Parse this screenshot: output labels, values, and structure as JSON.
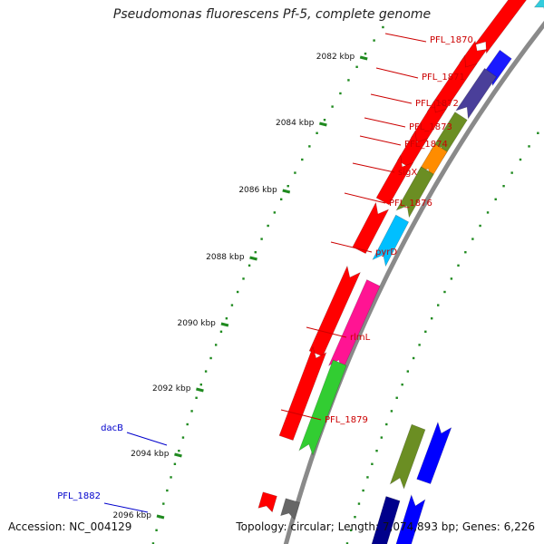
{
  "title": "Pseudomonas fluorescens Pf-5, complete genome",
  "footer": {
    "accession": "Accession: NC_004129",
    "summary": "Topology: circular; Length: 7,074,893 bp; Genes: 6,226"
  },
  "colors": {
    "backbone": "#8a8a8a",
    "tick": "#1f8a1f",
    "label_forward": "#cc0000",
    "label_reverse": "#0000cc"
  },
  "ticks": [
    {
      "label": "2082 kbp",
      "kbp": 2082
    },
    {
      "label": "2084 kbp",
      "kbp": 2084
    },
    {
      "label": "2086 kbp",
      "kbp": 2086
    },
    {
      "label": "2088 kbp",
      "kbp": 2088
    },
    {
      "label": "2090 kbp",
      "kbp": 2090
    },
    {
      "label": "2092 kbp",
      "kbp": 2092
    },
    {
      "label": "2094 kbp",
      "kbp": 2094
    },
    {
      "label": "2096 kbp",
      "kbp": 2096
    }
  ],
  "gene_labels": [
    {
      "text": "PFL_1870",
      "strand": "forward"
    },
    {
      "text": "PFL_1871",
      "strand": "forward"
    },
    {
      "text": "PFL_1872",
      "strand": "forward"
    },
    {
      "text": "PFL_1873",
      "strand": "forward"
    },
    {
      "text": "PFL_1874",
      "strand": "forward"
    },
    {
      "text": "sigX",
      "strand": "forward"
    },
    {
      "text": "PFL_1876",
      "strand": "forward"
    },
    {
      "text": "pyrD",
      "strand": "forward"
    },
    {
      "text": "rlmL",
      "strand": "forward"
    },
    {
      "text": "PFL_1879",
      "strand": "forward"
    },
    {
      "text": "dacB",
      "strand": "reverse"
    },
    {
      "text": "PFL_1882",
      "strand": "reverse"
    }
  ],
  "features": [
    {
      "track": "gene",
      "strand": "forward",
      "color": "#ff0000"
    },
    {
      "track": "cds",
      "strand": "forward",
      "color": "#33ccdd"
    },
    {
      "track": "gene",
      "strand": "forward",
      "color": "#ff0000"
    },
    {
      "track": "cds",
      "strand": "forward",
      "color": "#1a1aff"
    },
    {
      "track": "gene",
      "strand": "forward",
      "color": "#ff0000"
    },
    {
      "track": "cds",
      "strand": "forward",
      "color": "#4a3f9a"
    },
    {
      "track": "gene",
      "strand": "forward",
      "color": "#ff0000"
    },
    {
      "track": "gene",
      "strand": "forward",
      "color": "#ff0000"
    },
    {
      "track": "cds",
      "strand": "forward",
      "color": "#6b8e23"
    },
    {
      "track": "gene",
      "strand": "forward",
      "color": "#ff0000"
    },
    {
      "track": "cds",
      "strand": "forward",
      "color": "#ff8c00"
    },
    {
      "track": "gene",
      "strand": "forward",
      "color": "#ff0000"
    },
    {
      "track": "cds",
      "strand": "forward",
      "color": "#6b8e23"
    },
    {
      "track": "gene",
      "strand": "forward",
      "color": "#ff0000"
    },
    {
      "track": "cds",
      "strand": "forward",
      "color": "#00bfff"
    },
    {
      "track": "gene",
      "strand": "forward",
      "color": "#ff0000"
    },
    {
      "track": "cds",
      "strand": "forward",
      "color": "#ff1493"
    },
    {
      "track": "gene",
      "strand": "forward",
      "color": "#ff0000"
    },
    {
      "track": "cds",
      "strand": "forward",
      "color": "#32cd32"
    },
    {
      "track": "gene",
      "strand": "forward",
      "color": "#ff0000"
    },
    {
      "track": "cds",
      "strand": "forward",
      "color": "#666666"
    },
    {
      "track": "cds",
      "strand": "reverse",
      "color": "#6b8e23"
    },
    {
      "track": "gene",
      "strand": "reverse",
      "color": "#0000ff"
    },
    {
      "track": "cds",
      "strand": "reverse",
      "color": "#00008b"
    },
    {
      "track": "gene",
      "strand": "reverse",
      "color": "#0000ff"
    }
  ]
}
